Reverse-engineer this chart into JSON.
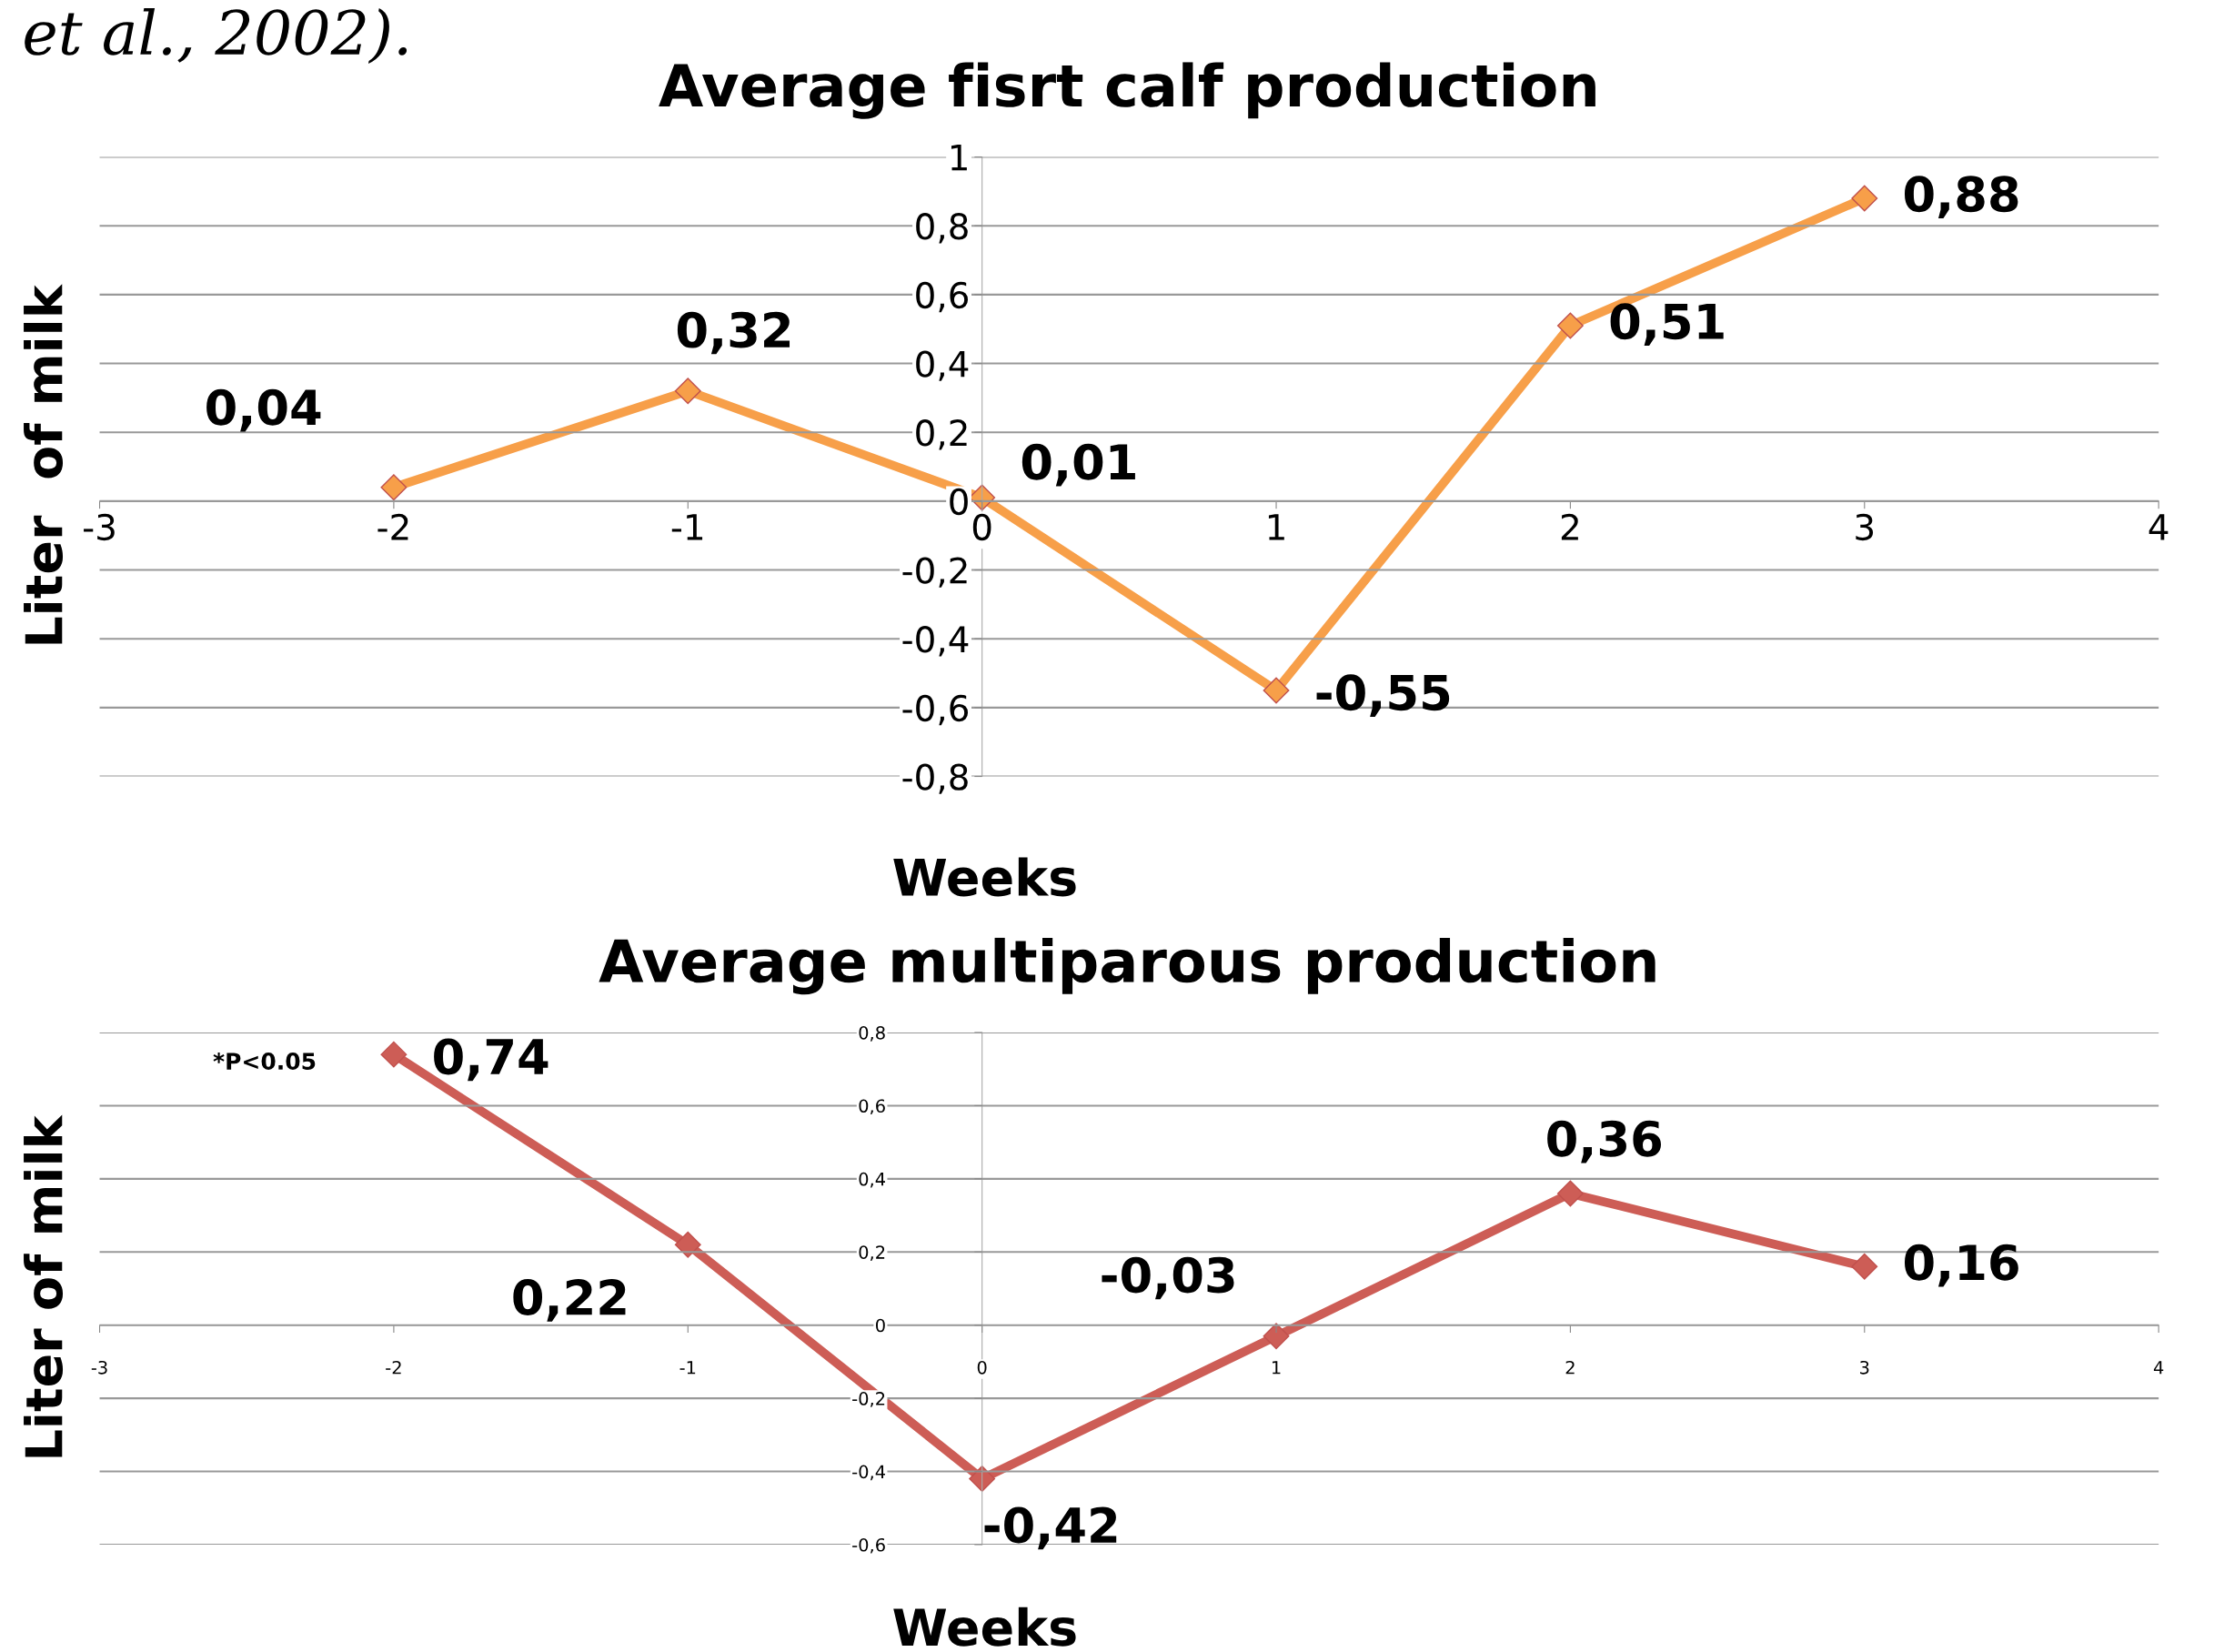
{
  "chart_data": [
    {
      "type": "line",
      "title": "Average fisrt calf production",
      "xlabel": "Weeks",
      "ylabel": "Liter  of milk",
      "annotations": [
        "et al., 2002)."
      ],
      "x": [
        -2,
        -1,
        0,
        1,
        2,
        3
      ],
      "series": [
        {
          "color": "#f79f49",
          "values": [
            0.04,
            0.32,
            0.01,
            -0.55,
            0.51,
            0.88
          ],
          "value_labels": [
            "0,04",
            "0,32",
            "0,01",
            "-0,55",
            "0,51",
            "0,88"
          ]
        }
      ],
      "xlim": [
        -3,
        4
      ],
      "xticks": [
        -3,
        -2,
        -1,
        0,
        1,
        2,
        3,
        4
      ],
      "ylim": [
        -0.8,
        1
      ],
      "yticks": [
        {
          "value": -0.8,
          "label": "-0,8"
        },
        {
          "value": -0.6,
          "label": "-0,6"
        },
        {
          "value": -0.4,
          "label": "-0,4"
        },
        {
          "value": -0.2,
          "label": "-0,2"
        },
        0,
        {
          "value": 0.2,
          "label": "0,2"
        },
        {
          "value": 0.4,
          "label": "0,4"
        },
        {
          "value": 0.6,
          "label": "0,6"
        },
        {
          "value": 0.8,
          "label": "0,8"
        },
        1
      ],
      "grid": "y",
      "marker": "diamond",
      "line_style": "solid"
    },
    {
      "type": "line",
      "title": "Average multiparous production",
      "xlabel": "Weeks",
      "ylabel": "Liter of milk",
      "annotations": [
        "*P<0.05"
      ],
      "x": [
        -2,
        -1,
        0,
        1,
        2,
        3
      ],
      "series": [
        {
          "color": "#cd5d56",
          "values": [
            0.74,
            0.22,
            -0.42,
            -0.03,
            0.36,
            0.16
          ],
          "value_labels": [
            "0,74",
            "0,22",
            "-0,42",
            "-0,03",
            "0,36",
            "0,16"
          ]
        }
      ],
      "xlim": [
        -3,
        4
      ],
      "xticks": [
        -3,
        -2,
        -1,
        0,
        1,
        2,
        3,
        4
      ],
      "ylim": [
        -0.6,
        0.8
      ],
      "yticks": [
        {
          "value": -0.6,
          "label": "-0,6"
        },
        {
          "value": -0.4,
          "label": "-0,4"
        },
        {
          "value": -0.2,
          "label": "-0,2"
        },
        0,
        {
          "value": 0.2,
          "label": "0,2"
        },
        {
          "value": 0.4,
          "label": "0,4"
        },
        {
          "value": 0.6,
          "label": "0,6"
        },
        {
          "value": 0.8,
          "label": "0,8"
        }
      ],
      "grid": "y",
      "marker": "diamond",
      "line_style": "solid"
    }
  ]
}
